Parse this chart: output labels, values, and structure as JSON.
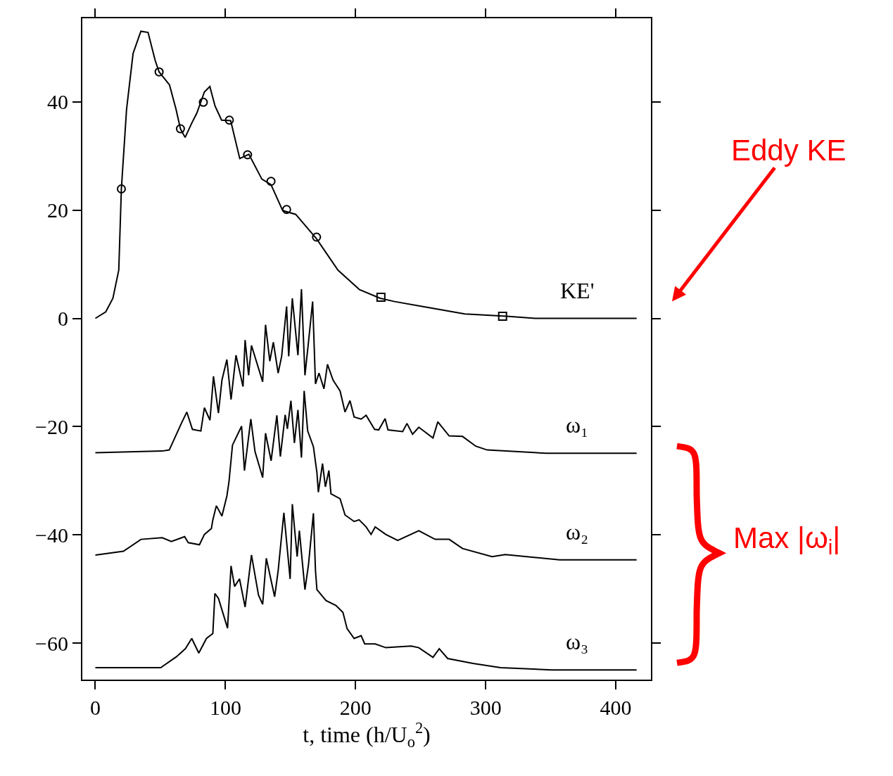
{
  "chart_data": {
    "type": "line",
    "xlabel": "t, time (h/U$_{o}$$^{2}$)",
    "xlim": [
      -10,
      427
    ],
    "ylim": [
      -66.7,
      55.4
    ],
    "xticks": [
      0,
      100,
      200,
      300,
      400
    ],
    "yticks": [
      -60,
      -40,
      -20,
      0,
      20,
      40
    ],
    "legend": false,
    "marker": "none",
    "line_style": "solid",
    "annotations": [
      "Eddy KE",
      "Max |ω$_{i}$|"
    ],
    "series": [
      {
        "name": "KE'",
        "color": "#000000",
        "x": [
          0,
          8,
          13.5,
          18,
          20,
          24,
          29,
          35,
          40.5,
          46,
          49,
          57,
          62,
          65.4,
          69,
          74,
          78,
          83.8,
          88,
          92,
          97,
          104,
          111,
          118,
          128,
          135,
          144,
          154,
          170,
          186.5,
          203,
          219,
          230,
          251,
          284,
          316,
          338,
          416
        ],
        "values": [
          0,
          1.2,
          3.7,
          8.9,
          23.9,
          38.6,
          48.9,
          53,
          52.8,
          47.6,
          45.5,
          43.1,
          38.6,
          35,
          33.4,
          36,
          37.9,
          41.8,
          42.8,
          39.2,
          36.6,
          36.5,
          29.5,
          30.3,
          25.7,
          24.7,
          19.9,
          19.2,
          14.7,
          8.9,
          5.3,
          3.7,
          3.1,
          2.2,
          0.8,
          0.4,
          0,
          0
        ]
      },
      {
        "type": "scatter",
        "marker": "circle",
        "color": "#000000",
        "x": [
          20,
          49,
          65.4,
          83,
          103,
          117,
          135,
          147,
          170
        ],
        "values": [
          23.9,
          45.5,
          35,
          39.9,
          36.6,
          30.2,
          25.3,
          20.1,
          15
        ]
      },
      {
        "type": "scatter",
        "marker": "square",
        "color": "#000000",
        "x": [
          219.5,
          313
        ],
        "values": [
          3.9,
          0.4
        ]
      },
      {
        "name": "ω₁",
        "color": "#000000",
        "x": [
          0,
          51.4,
          56.8,
          65.9,
          70.3,
          74.6,
          81.1,
          83.8,
          88.1,
          90.8,
          94.6,
          97.3,
          101.1,
          104.3,
          108.1,
          113.5,
          115.1,
          117.8,
          120.0,
          123.2,
          128.6,
          130.8,
          134.1,
          136.8,
          140.5,
          143.2,
          147.0,
          148.6,
          151.4,
          155.7,
          158.4,
          161.1,
          163.8,
          167.0,
          169.2,
          171.9,
          175.7,
          178.4,
          182.7,
          188.1,
          191.9,
          195.7,
          198.9,
          204.3,
          208.1,
          214.6,
          217.8,
          222.7,
          224.9,
          236.2,
          239.5,
          243.8,
          248.6,
          259.5,
          263.2,
          271.9,
          282.2,
          292.4,
          301.1,
          346.5,
          416
        ],
        "values": [
          -24.8,
          -24.5,
          -24.3,
          -19.5,
          -17.3,
          -20.5,
          -20.8,
          -16.5,
          -18.8,
          -10.7,
          -17.5,
          -11.4,
          -7.6,
          -15.0,
          -6.8,
          -12.6,
          -4.0,
          -10.5,
          -5.0,
          -7.5,
          -11.7,
          -1.2,
          -7.9,
          -4.4,
          -10.1,
          -7.0,
          2.2,
          -7.0,
          3.7,
          -6.8,
          5.4,
          -10.5,
          -4.4,
          3.1,
          -12.1,
          -10.1,
          -13.0,
          -8.5,
          -11.4,
          -13.4,
          -17.3,
          -15.2,
          -18.2,
          -18.6,
          -17.9,
          -20.5,
          -20.6,
          -18.5,
          -20.6,
          -20.9,
          -19.4,
          -21.4,
          -20.1,
          -22.1,
          -19.1,
          -21.7,
          -21.8,
          -23.6,
          -24.3,
          -24.9,
          -24.9
        ]
      },
      {
        "name": "ω₂",
        "color": "#000000",
        "x": [
          0,
          21.6,
          35.1,
          51.4,
          58.4,
          68.6,
          71.4,
          80.0,
          83.8,
          89.2,
          90.3,
          93.0,
          97.3,
          101.1,
          102.7,
          105.4,
          112.4,
          114.6,
          119.5,
          122.7,
          128.6,
          130.8,
          135.1,
          139.5,
          142.2,
          145.9,
          147.6,
          150.3,
          153.0,
          155.7,
          158.4,
          160.5,
          163.2,
          167.6,
          170.3,
          171.4,
          174.6,
          176.8,
          179.5,
          181.1,
          188.1,
          191.9,
          198.9,
          202.7,
          208.1,
          211.9,
          215.1,
          223.2,
          232.4,
          248.6,
          261.1,
          271.9,
          282.2,
          304.9,
          315.1,
          356.8,
          416
        ],
        "values": [
          -43.7,
          -43.0,
          -40.8,
          -40.5,
          -41.2,
          -40.3,
          -41.4,
          -41.8,
          -39.9,
          -38.8,
          -37.2,
          -34.6,
          -36.5,
          -32.8,
          -30.2,
          -23.4,
          -19.9,
          -28.1,
          -18.6,
          -24.6,
          -29.4,
          -21.2,
          -26.3,
          -17.9,
          -25.5,
          -17.8,
          -20.4,
          -15.2,
          -23.0,
          -16.9,
          -25.7,
          -13.4,
          -20.8,
          -23.7,
          -28.5,
          -32.1,
          -26.8,
          -31.1,
          -28.1,
          -32.4,
          -33.3,
          -36.3,
          -37.5,
          -37.2,
          -38.5,
          -39.9,
          -38.5,
          -39.9,
          -41.0,
          -39.2,
          -40.8,
          -40.8,
          -42.5,
          -44.0,
          -43.6,
          -44.6,
          -44.6
        ]
      },
      {
        "name": "ω₃",
        "color": "#000000",
        "x": [
          0,
          50.3,
          51.4,
          62.2,
          69.2,
          74.1,
          79.5,
          85.4,
          90.3,
          91.9,
          94.6,
          101.6,
          104.3,
          107.0,
          110.8,
          115.1,
          120.0,
          125.4,
          128.6,
          131.4,
          137.8,
          140.5,
          144.9,
          149.7,
          151.4,
          155.1,
          156.8,
          161.1,
          163.8,
          167.6,
          169.2,
          170.3,
          177.3,
          184.9,
          190.3,
          193.5,
          198.9,
          204.3,
          207.0,
          215.1,
          223.2,
          242.7,
          248.6,
          259.5,
          264.3,
          270.8,
          290.3,
          311.4,
          350.8,
          416
        ],
        "values": [
          -64.5,
          -64.5,
          -64.3,
          -62.5,
          -61.0,
          -59.1,
          -61.8,
          -59.1,
          -58.2,
          -50.8,
          -51.7,
          -57.2,
          -45.7,
          -49.5,
          -48.1,
          -53.3,
          -43.7,
          -51.1,
          -52.8,
          -44.3,
          -51.4,
          -46.6,
          -35.9,
          -48.1,
          -34.3,
          -44.0,
          -39.2,
          -50.1,
          -45.5,
          -36.0,
          -46.6,
          -50.1,
          -52.1,
          -53.0,
          -54.3,
          -57.3,
          -59.1,
          -58.6,
          -60.1,
          -60.1,
          -60.8,
          -60.5,
          -60.8,
          -62.6,
          -61.0,
          -62.8,
          -63.7,
          -64.5,
          -64.9,
          -64.9
        ]
      }
    ]
  }
}
